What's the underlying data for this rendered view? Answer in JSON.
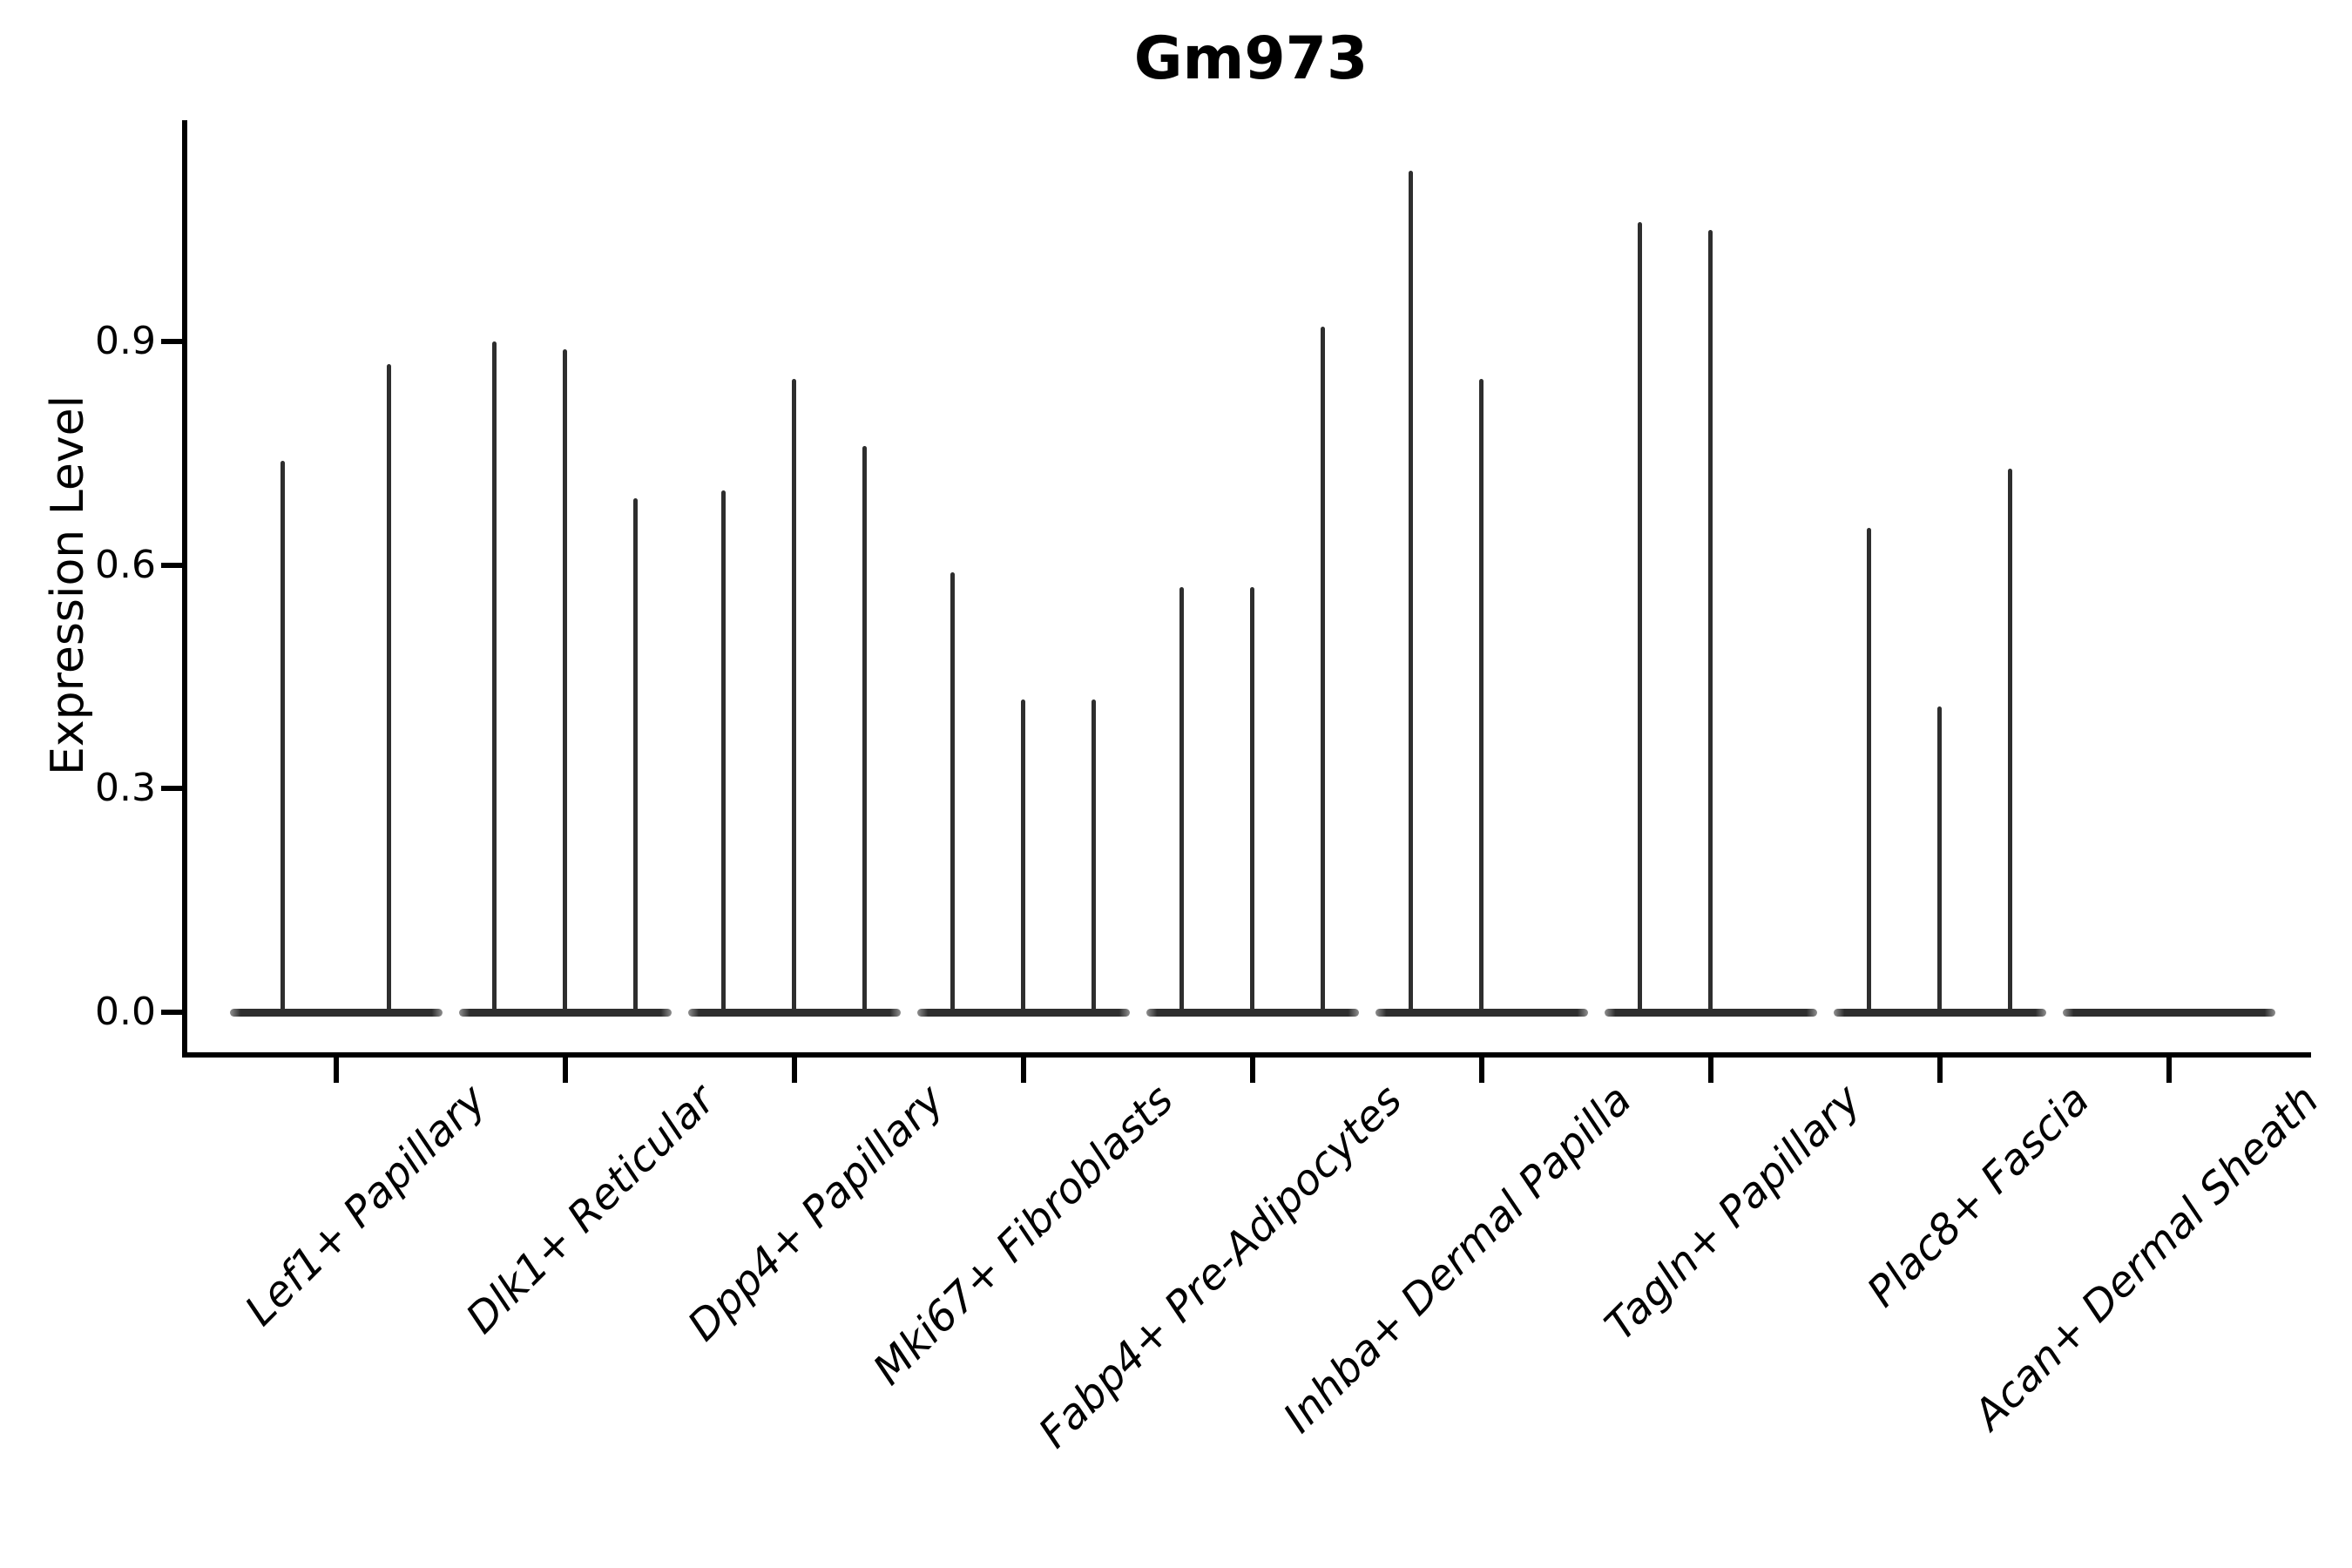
{
  "chart_data": {
    "type": "violin",
    "title": "Gm973",
    "ylabel": "Expression Level",
    "xlabel": "",
    "ylim": [
      -0.06,
      1.2
    ],
    "yticks": [
      0,
      0.3,
      0.6,
      0.9
    ],
    "ytick_labels": [
      "0.0",
      "0.3",
      "0.6",
      "0.9"
    ],
    "grid": false,
    "legend": "none",
    "violin_color": "#2e2e2e",
    "axis_color": "#000000",
    "background_color": "#ffffff",
    "style_note": "Each category contains 2-3 very thin violins: almost all density lies at 0 (wide flat base bar) with a thin vertical spike reaching the maximum expression value; a peak of 0 means a flat violin with no spike.",
    "categories": [
      "Lef1+ Papillary",
      "Dlk1+ Reticular",
      "Dpp4+ Papillary",
      "Mki67+ Fibroblasts",
      "Fabp4+ Pre-Adipocytes",
      "Inhba+ Dermal Papilla",
      "Tagln+ Papillary",
      "Plac8+ Fascia",
      "Acan+ Dermal Sheath"
    ],
    "groups": [
      {
        "label": "Lef1+ Papillary",
        "violin_peaks": [
          0.74,
          0.87
        ]
      },
      {
        "label": "Dlk1+ Reticular",
        "violin_peaks": [
          0.9,
          0.89,
          0.69
        ]
      },
      {
        "label": "Dpp4+ Papillary",
        "violin_peaks": [
          0.7,
          0.85,
          0.76
        ]
      },
      {
        "label": "Mki67+ Fibroblasts",
        "violin_peaks": [
          0.59,
          0.42,
          0.42
        ]
      },
      {
        "label": "Fabp4+ Pre-Adipocytes",
        "violin_peaks": [
          0.57,
          0.57,
          0.92
        ]
      },
      {
        "label": "Inhba+ Dermal Papilla",
        "violin_peaks": [
          1.13,
          0.85,
          0
        ]
      },
      {
        "label": "Tagln+ Papillary",
        "violin_peaks": [
          1.06,
          1.05,
          0
        ]
      },
      {
        "label": "Plac8+ Fascia",
        "violin_peaks": [
          0.65,
          0.41,
          0.73
        ]
      },
      {
        "label": "Acan+ Dermal Sheath",
        "violin_peaks": [
          0,
          0,
          0
        ]
      }
    ]
  }
}
